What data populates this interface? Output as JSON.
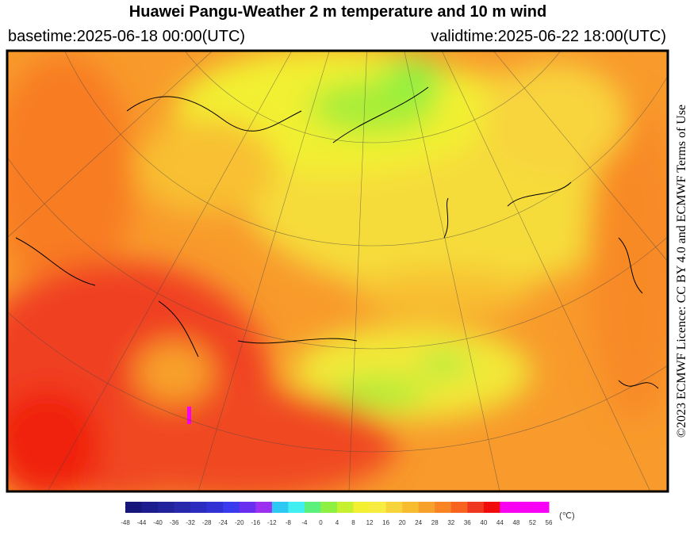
{
  "header": {
    "title": "Huawei Pangu-Weather  2 m temperature and 10 m wind",
    "basetime": "basetime:2025-06-18 00:00(UTC)",
    "validtime": "validtime:2025-06-22 18:00(UTC)"
  },
  "license": "©2023 ECMWF Licence: CC BY 4.0 and ECMWF Terms of Use",
  "colorbar": {
    "unit": "(℃)",
    "ticks": [
      -48,
      -44,
      -40,
      -36,
      -32,
      -28,
      -24,
      -20,
      -16,
      -12,
      -8,
      -4,
      0,
      4,
      8,
      12,
      16,
      20,
      24,
      28,
      32,
      36,
      40,
      44,
      48,
      52,
      56
    ],
    "colors": [
      "#16167a",
      "#1c1c8e",
      "#22229c",
      "#2828ac",
      "#2c2cbe",
      "#3232d4",
      "#3a3aee",
      "#6a2ef0",
      "#9c30f0",
      "#2ec8f4",
      "#40f0f0",
      "#5cf07c",
      "#8ef040",
      "#c6f030",
      "#f2f030",
      "#f8ec40",
      "#f8d43c",
      "#f8bc30",
      "#f8a02c",
      "#f88424",
      "#f86420",
      "#f03820",
      "#f00c0c",
      "#f800f0",
      "#f800f4",
      "#f800f8"
    ]
  }
}
